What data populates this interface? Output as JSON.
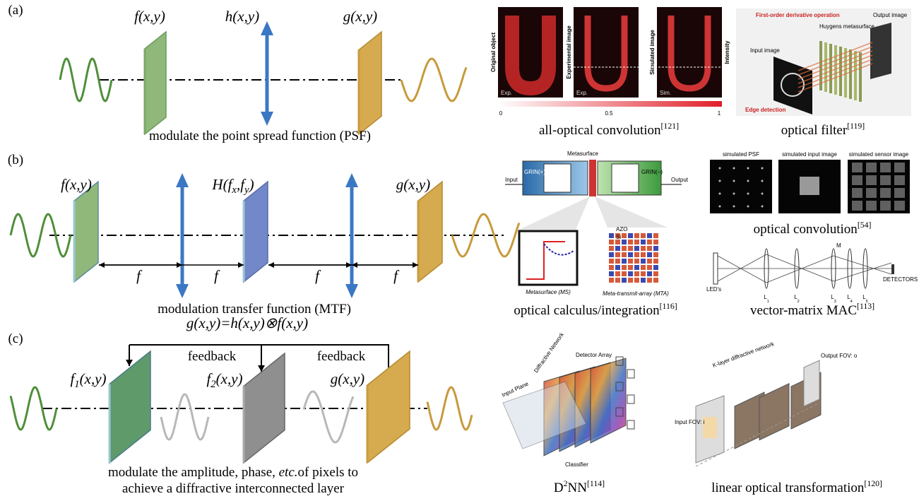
{
  "a": {
    "label": "(a)",
    "f": "f(x,y)",
    "h": "h(x,y)",
    "g": "g(x,y)",
    "caption": "modulate the point spread function (PSF)",
    "conv": {
      "caption": "all-optical convolution",
      "ref": "[121]",
      "panels": [
        "Original object",
        "Experimental image",
        "Simulated image"
      ],
      "intensity": "Intensity",
      "tags": [
        "Exp.",
        "Exp.",
        "Sim."
      ],
      "scale": [
        "0",
        "0.5",
        "1"
      ]
    },
    "filter": {
      "caption": "optical filter",
      "ref": "[119]",
      "texts": [
        "First-order derivative operation",
        "Huygens metasurface",
        "Output image",
        "Input image",
        "Edge detection"
      ]
    }
  },
  "b": {
    "label": "(b)",
    "f": "f(x,y)",
    "H": [
      "H(f",
      "x",
      ",f",
      "y",
      ")"
    ],
    "g": "g(x,y)",
    "dist": [
      "f",
      "f",
      "f",
      "f"
    ],
    "caption": [
      "modulation transfer function (MTF)",
      "g(x,y)=h(x,y)⊗f(x,y)"
    ],
    "calculus": {
      "caption": "optical calculus/integration",
      "ref": "[116]",
      "metasurface": "Metasurface",
      "input": "Input",
      "output": "Output",
      "grin_plus": "GRIN(+)",
      "grin_minus": "GRIN(−)",
      "azo": "AZO",
      "si": "Si",
      "ms": "Metasurface (MS)",
      "mta": "Meta-transmit-array (MTA)"
    },
    "convolution": {
      "caption": "optical convolution",
      "ref": "[54]",
      "titles": [
        "simulated PSF",
        "simulated input image",
        "simulated sensor image"
      ]
    },
    "mac": {
      "caption": "vector-matrix MAC",
      "ref": "[113]",
      "leds": "LED's",
      "lens": "L",
      "lens_index": [
        "1",
        "2",
        "3",
        "4",
        "5"
      ],
      "mask": "M",
      "detectors": "DETECTORS"
    }
  },
  "c": {
    "label": "(c)",
    "feedback": [
      "feedback",
      "feedback"
    ],
    "f1": [
      "f",
      "1",
      "(x,y)"
    ],
    "f2": [
      "f",
      "2",
      "(x,y)"
    ],
    "g": "g(x,y)",
    "caption": [
      [
        "modulate the amplitude, phase, ",
        "etc.",
        "of pixels to"
      ],
      "achieve a diffractive interconnected layer"
    ],
    "d2nn": {
      "caption": [
        "D",
        "2",
        "NN"
      ],
      "ref": "[114]",
      "texts": [
        "Input Plane",
        "Diffractive Network",
        "Detector Array",
        "Classifier"
      ]
    },
    "linear": {
      "caption": "linear optical transformation",
      "ref": "[120]",
      "texts": [
        "Input FOV: i",
        "Output FOV: o",
        "K-layer diffractive network"
      ]
    }
  }
}
